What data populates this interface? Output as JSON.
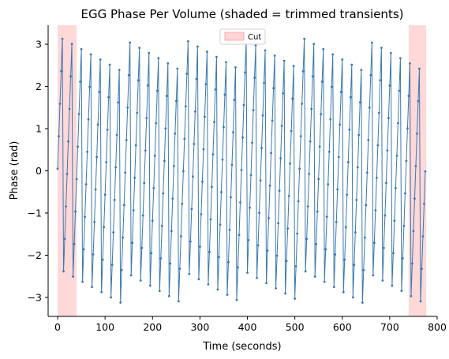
{
  "chart_data": {
    "type": "line",
    "title": "EGG Phase Per Volume (shaded = trimmed transients)",
    "xlabel": "Time (seconds)",
    "ylabel": "Phase (rad)",
    "xlim": [
      -20,
      800
    ],
    "ylim": [
      -3.45,
      3.45
    ],
    "xticks": [
      0,
      100,
      200,
      300,
      400,
      500,
      600,
      700,
      800
    ],
    "yticks": [
      -3,
      -2,
      -1,
      0,
      1,
      2,
      3
    ],
    "grid": false,
    "legend": {
      "placement": "top-center",
      "entries": [
        {
          "label": "Cut",
          "color": "#ffb3b3"
        }
      ]
    },
    "shaded_regions": [
      {
        "x": [
          0,
          40
        ]
      },
      {
        "x": [
          740,
          777
        ]
      }
    ],
    "line_color": "#3a78b0",
    "series": [
      {
        "sample_step_seconds": 2.5,
        "x_start": 0,
        "x_end": 777,
        "period_seconds": 20.4,
        "phase_range": [
          -3.14159,
          3.14159
        ],
        "cycles_approx": 38
      }
    ]
  }
}
